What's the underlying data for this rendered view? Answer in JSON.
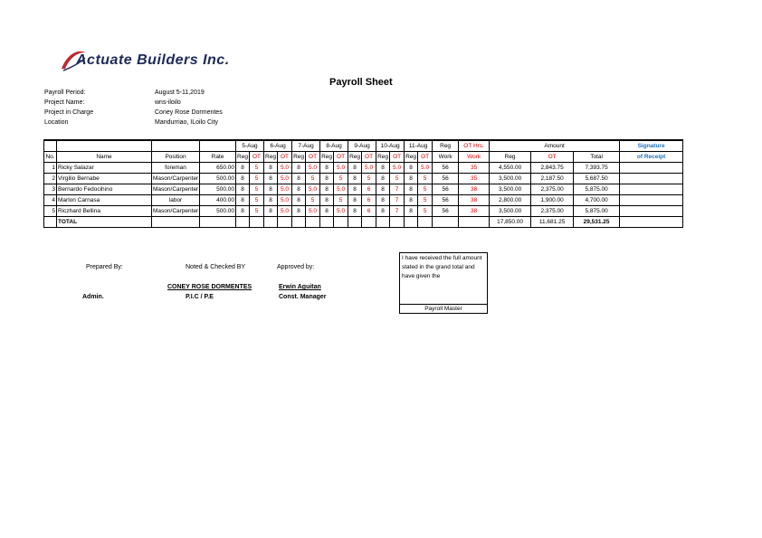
{
  "header": {
    "logo": "Actuate Builders Inc.",
    "title": "Payroll Sheet"
  },
  "info": [
    {
      "label": "Payroll Period:",
      "value": "August 5-11,2019"
    },
    {
      "label": "Project Name:",
      "value": "wns-iloilo"
    },
    {
      "label": "Project in Charge",
      "value": "Coney Rose Dormentes"
    },
    {
      "label": "Location",
      "value": "Mandurriao, ILoilo City"
    }
  ],
  "table": {
    "header": {
      "no": "No.",
      "name": "Name",
      "position": "Position",
      "rate": "Rate",
      "days": [
        "5-Aug",
        "6-Aug",
        "7-Aug",
        "8-Aug",
        "9-Aug",
        "10-Aug",
        "11-Aug"
      ],
      "reg": "Reg",
      "ot": "OT",
      "reg_work": [
        "Reg",
        "Work"
      ],
      "ot_work": [
        "OT Hrs.",
        "Work"
      ],
      "amount": "Amount",
      "amount_cols": [
        "Reg",
        "OT",
        "Total"
      ],
      "signature": [
        "Signature",
        "of Receipt"
      ]
    },
    "rows": [
      {
        "no": "1",
        "name": "Ricky Salazar",
        "position": "foreman",
        "rate": "650.00",
        "hours": [
          [
            "8",
            "5"
          ],
          [
            "8",
            "5.0"
          ],
          [
            "8",
            "5.0"
          ],
          [
            "8",
            "5.0"
          ],
          [
            "8",
            "5.0"
          ],
          [
            "8",
            "5.0"
          ],
          [
            "8",
            "5.0"
          ]
        ],
        "reg_work": "56",
        "ot_work": "35",
        "amount_reg": "4,550.00",
        "amount_ot": "2,843.75",
        "total": "7,393.75"
      },
      {
        "no": "2",
        "name": "Virgilio Bernabe",
        "position": "Mason/Carpenter",
        "rate": "500.00",
        "hours": [
          [
            "8",
            "5"
          ],
          [
            "8",
            "5.0"
          ],
          [
            "8",
            "5"
          ],
          [
            "8",
            "5"
          ],
          [
            "8",
            "5"
          ],
          [
            "8",
            "5"
          ],
          [
            "8",
            "5"
          ]
        ],
        "reg_work": "56",
        "ot_work": "35",
        "amount_reg": "3,500.00",
        "amount_ot": "2,187.50",
        "total": "5,687.50"
      },
      {
        "no": "3",
        "name": "Bernardo Fedocihino",
        "position": "Mason/Carpenter",
        "rate": "500.00",
        "hours": [
          [
            "8",
            "5"
          ],
          [
            "8",
            "5.0"
          ],
          [
            "8",
            "5.0"
          ],
          [
            "8",
            "5.0"
          ],
          [
            "8",
            "6"
          ],
          [
            "8",
            "7"
          ],
          [
            "8",
            "5"
          ]
        ],
        "reg_work": "56",
        "ot_work": "38",
        "amount_reg": "3,500.00",
        "amount_ot": "2,375.00",
        "total": "5,875.00"
      },
      {
        "no": "4",
        "name": "Marlon Carnasa",
        "position": "labor",
        "rate": "400.00",
        "hours": [
          [
            "8",
            "5"
          ],
          [
            "8",
            "5.0"
          ],
          [
            "8",
            "5"
          ],
          [
            "8",
            "5"
          ],
          [
            "8",
            "6"
          ],
          [
            "8",
            "7"
          ],
          [
            "8",
            "5"
          ]
        ],
        "reg_work": "56",
        "ot_work": "38",
        "amount_reg": "2,800.00",
        "amount_ot": "1,900.00",
        "total": "4,700.00"
      },
      {
        "no": "5",
        "name": "Riczhard Bellina",
        "position": "Mason/Carpenter",
        "rate": "500.00",
        "hours": [
          [
            "8",
            "5"
          ],
          [
            "8",
            "5.0"
          ],
          [
            "8",
            "5.0"
          ],
          [
            "8",
            "5.0"
          ],
          [
            "8",
            "6"
          ],
          [
            "8",
            "7"
          ],
          [
            "8",
            "5"
          ]
        ],
        "reg_work": "56",
        "ot_work": "38",
        "amount_reg": "3,500.00",
        "amount_ot": "2,375.00",
        "total": "5,875.00"
      }
    ],
    "total": {
      "label": "TOTAL",
      "amount_reg": "17,850.00",
      "amount_ot": "11,681.25",
      "total": "29,531.25"
    }
  },
  "footer": {
    "prepared_by": "Prepared By:",
    "noted_by": "Noted & Checked BY",
    "approved_by": "Approved by:",
    "preparer_role": "Admin.",
    "noted_name": "CONEY ROSE DORMENTES",
    "noted_role": "P.I.C / P.E",
    "approver_name": "Erwin Aguitan",
    "approver_role": "Const. Manager",
    "receipt_text": "I have received the full amount stated in the grand total and have given the",
    "receipt_role": "Payroll Master"
  }
}
